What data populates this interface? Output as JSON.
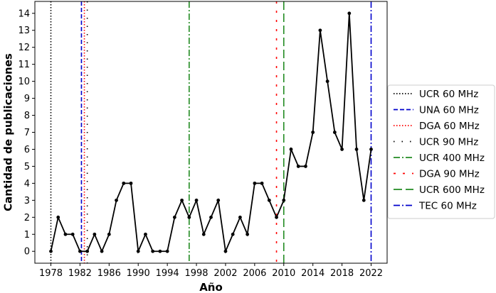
{
  "chart_data": {
    "type": "line",
    "title": "",
    "xlabel": "Año",
    "ylabel": "Cantidad de publicaciones",
    "xlim": [
      1975.8,
      2024.2
    ],
    "ylim": [
      -0.7,
      14.7
    ],
    "xticks": [
      1978,
      1982,
      1986,
      1990,
      1994,
      1998,
      2002,
      2006,
      2010,
      2014,
      2018,
      2022
    ],
    "yticks": [
      0,
      1,
      2,
      3,
      4,
      5,
      6,
      7,
      8,
      9,
      10,
      11,
      12,
      13,
      14
    ],
    "grid": false,
    "legend_position": "outside-right",
    "series": [
      {
        "x": [
          1978,
          1979,
          1980,
          1981,
          1982,
          1983,
          1984,
          1985,
          1986,
          1987,
          1988,
          1989,
          1990,
          1991,
          1992,
          1993,
          1994,
          1995,
          1996,
          1997,
          1998,
          1999,
          2000,
          2001,
          2002,
          2003,
          2004,
          2005,
          2006,
          2007,
          2008,
          2009,
          2010,
          2011,
          2012,
          2013,
          2014,
          2015,
          2016,
          2017,
          2018,
          2019,
          2020,
          2021,
          2022
        ],
        "values": [
          0,
          2,
          1,
          1,
          0,
          0,
          1,
          0,
          1,
          3,
          4,
          4,
          0,
          1,
          0,
          0,
          0,
          2,
          3,
          2,
          3,
          1,
          2,
          3,
          0,
          1,
          2,
          1,
          4,
          4,
          3,
          2,
          3,
          6,
          5,
          5,
          7,
          13,
          10,
          7,
          6,
          14,
          6,
          3,
          6
        ],
        "color": "#000000"
      }
    ],
    "vertical_lines": [
      {
        "label": "UCR 60 MHz",
        "x": 1978,
        "color": "#000000",
        "style": "dotted"
      },
      {
        "label": "UNA 60 MHz",
        "x": 1982.2,
        "color": "#0000cc",
        "style": "dashed"
      },
      {
        "label": "DGA 60 MHz",
        "x": 1982.6,
        "color": "#ff0000",
        "style": "dotted"
      },
      {
        "label": "UCR 90 MHz",
        "x": 1983.0,
        "color": "#000000",
        "style": "sparse-dotted"
      },
      {
        "label": "UCR 400 MHz",
        "x": 1997,
        "color": "#228b22",
        "style": "dashdot"
      },
      {
        "label": "DGA 90 MHz",
        "x": 2009,
        "color": "#ff0000",
        "style": "dash-sparse"
      },
      {
        "label": "UCR 600 MHz",
        "x": 2010,
        "color": "#228b22",
        "style": "long-dashed"
      },
      {
        "label": "TEC 60 MHz",
        "x": 2022,
        "color": "#0000cc",
        "style": "dashdot"
      }
    ]
  }
}
